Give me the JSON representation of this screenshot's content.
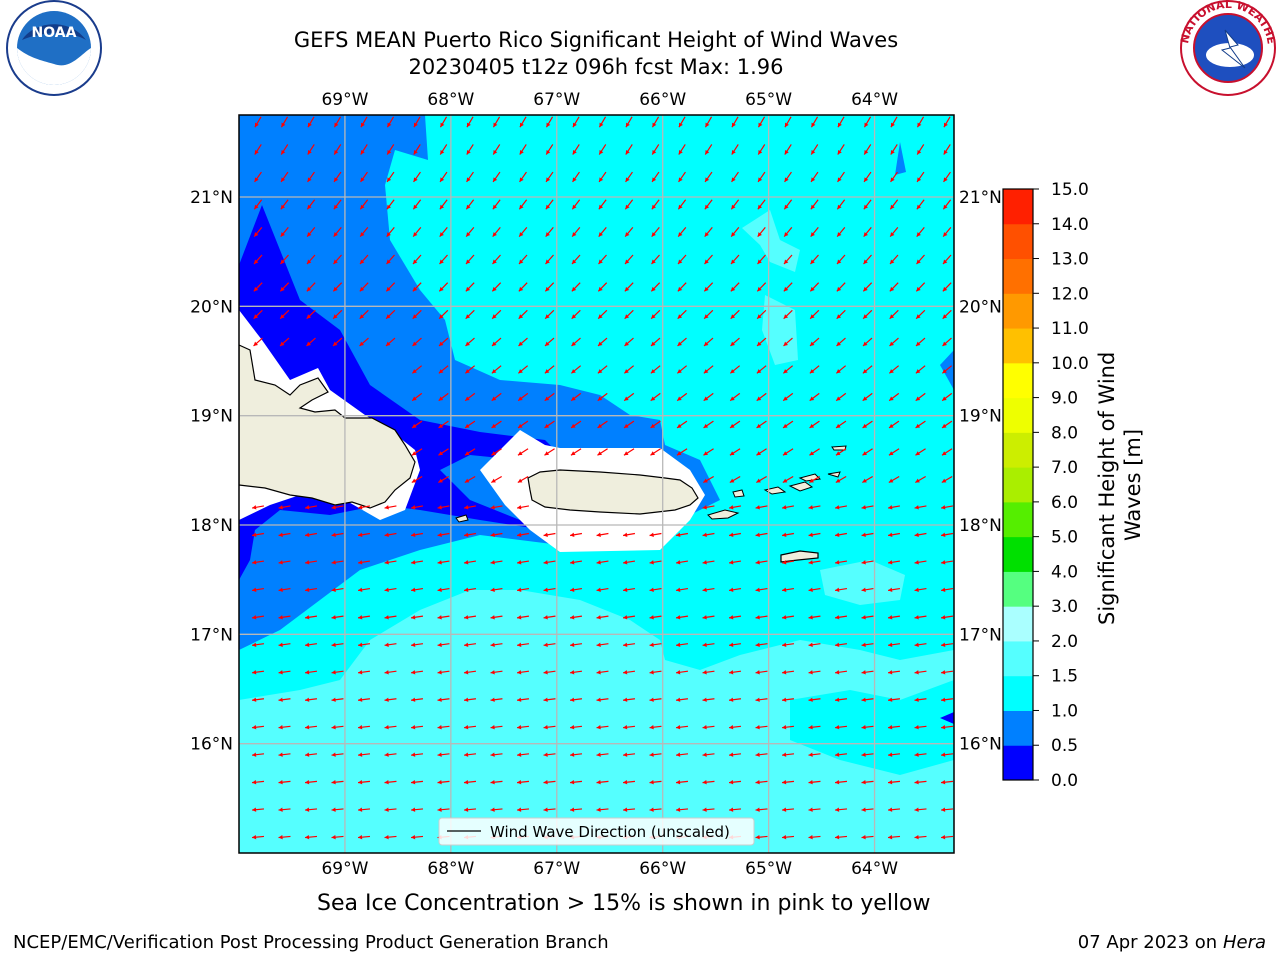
{
  "title": {
    "line1": "GEFS MEAN Puerto Rico Significant Height of Wind Waves",
    "line2": "20230405 t12z 096h fcst   Max: 1.96"
  },
  "map": {
    "lon_range": [
      -70,
      -63.25
    ],
    "lat_range": [
      15,
      21.75
    ],
    "lon_ticks": [
      "69°W",
      "68°W",
      "67°W",
      "66°W",
      "65°W",
      "64°W"
    ],
    "lat_ticks": [
      "21°N",
      "20°N",
      "19°N",
      "18°N",
      "17°N",
      "16°N"
    ],
    "legend_label": "Wind Wave Direction (unscaled)",
    "arrow_color": "#ff0000"
  },
  "colorbar": {
    "label": "Significant Height of Wind Waves [m]",
    "label_line1": "Significant Height of Wind",
    "label_line2": "Waves [m]",
    "ticks": [
      "0.0",
      "0.5",
      "1.0",
      "1.5",
      "2.0",
      "3.0",
      "4.0",
      "5.0",
      "6.0",
      "7.0",
      "8.0",
      "9.0",
      "10.0",
      "11.0",
      "12.0",
      "13.0",
      "14.0",
      "15.0"
    ],
    "colors": [
      "#0000ff",
      "#0080ff",
      "#00ffff",
      "#55ffff",
      "#aaffff",
      "#55ff80",
      "#00e000",
      "#55ee00",
      "#aaee00",
      "#ccee00",
      "#eeff00",
      "#ffff00",
      "#ffc000",
      "#ff9900",
      "#ff7000",
      "#ff5000",
      "#ff2000"
    ]
  },
  "logos": {
    "left_text": "NOAA",
    "right_text": "NATIONAL WEATHER SERVICE"
  },
  "note": "Sea Ice Concentration > 15% is shown in pink to yellow",
  "footer": {
    "left": "NCEP/EMC/Verification Post Processing Product Generation Branch",
    "date": "07 Apr 2023 on ",
    "host": "Hera"
  }
}
